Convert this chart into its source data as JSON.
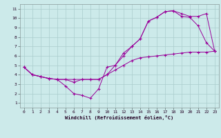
{
  "xlabel": "Windchill (Refroidissement éolien,°C)",
  "background_color": "#cceaea",
  "line_color": "#990099",
  "grid_color": "#aacccc",
  "xlim": [
    -0.5,
    23.5
  ],
  "ylim": [
    0.5,
    11.5
  ],
  "xticks": [
    0,
    1,
    2,
    3,
    4,
    5,
    6,
    7,
    8,
    9,
    10,
    11,
    12,
    13,
    14,
    15,
    16,
    17,
    18,
    19,
    20,
    21,
    22,
    23
  ],
  "yticks": [
    1,
    2,
    3,
    4,
    5,
    6,
    7,
    8,
    9,
    10,
    11
  ],
  "line1_x": [
    0,
    1,
    2,
    3,
    4,
    5,
    6,
    7,
    8,
    9,
    10,
    11,
    12,
    13,
    14,
    15,
    16,
    17,
    18,
    19,
    20,
    21,
    22,
    23
  ],
  "line1_y": [
    4.8,
    4.0,
    3.8,
    3.6,
    3.5,
    2.8,
    2.0,
    1.8,
    1.5,
    2.5,
    4.8,
    5.0,
    6.3,
    7.0,
    7.8,
    9.7,
    10.1,
    10.7,
    10.8,
    10.2,
    10.1,
    9.2,
    7.4,
    6.5
  ],
  "line2_x": [
    0,
    1,
    2,
    3,
    4,
    5,
    6,
    7,
    8,
    9,
    10,
    11,
    12,
    13,
    14,
    15,
    16,
    17,
    18,
    19,
    20,
    21,
    22,
    23
  ],
  "line2_y": [
    4.8,
    4.0,
    3.8,
    3.6,
    3.5,
    3.5,
    3.2,
    3.5,
    3.5,
    3.5,
    4.0,
    5.0,
    6.0,
    7.0,
    7.8,
    9.7,
    10.1,
    10.7,
    10.8,
    10.5,
    10.2,
    10.2,
    10.5,
    6.5
  ],
  "line3_x": [
    0,
    1,
    2,
    3,
    4,
    5,
    6,
    7,
    8,
    9,
    10,
    11,
    12,
    13,
    14,
    15,
    16,
    17,
    18,
    19,
    20,
    21,
    22,
    23
  ],
  "line3_y": [
    4.8,
    4.0,
    3.8,
    3.6,
    3.5,
    3.5,
    3.5,
    3.5,
    3.5,
    3.5,
    4.0,
    4.5,
    5.0,
    5.5,
    5.8,
    5.9,
    6.0,
    6.1,
    6.2,
    6.3,
    6.4,
    6.4,
    6.4,
    6.5
  ]
}
